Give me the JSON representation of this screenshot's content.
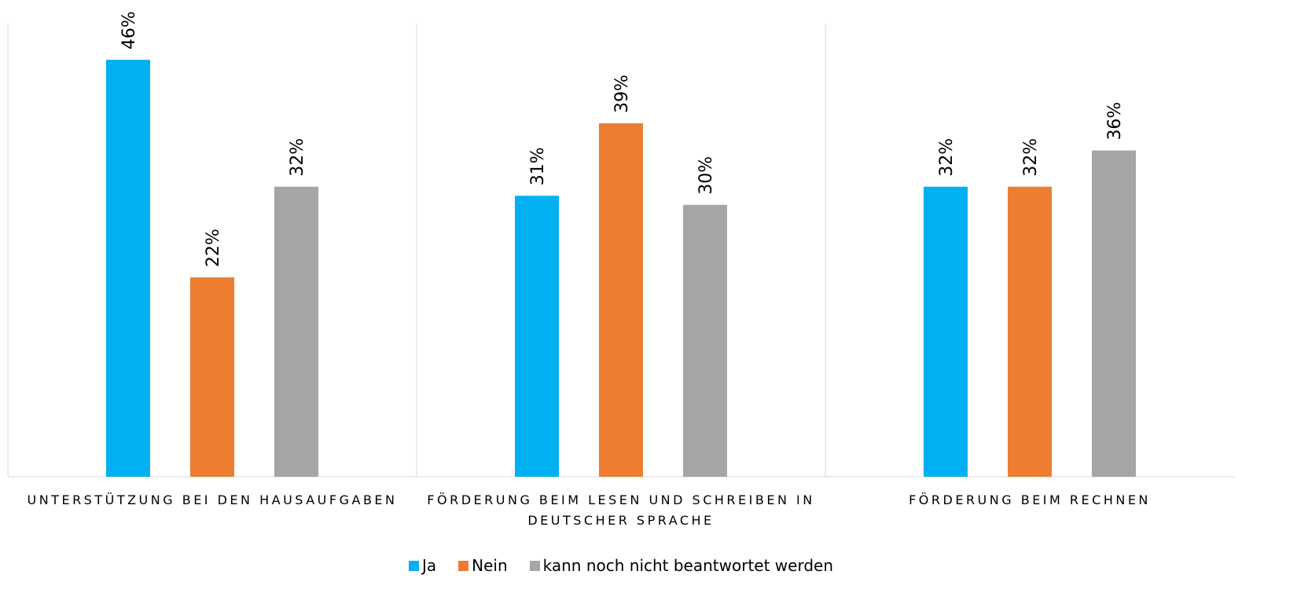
{
  "chart_data": {
    "type": "bar",
    "categories": [
      "UNTERSTÜTZUNG BEI DEN HAUSAUFGABEN",
      "FÖRDERUNG BEIM LESEN UND SCHREIBEN IN DEUTSCHER SPRACHE",
      "FÖRDERUNG BEIM RECHNEN"
    ],
    "series": [
      {
        "name": "Ja",
        "color": "#00b0f0",
        "values": [
          46,
          31,
          32
        ],
        "value_labels": [
          "46%",
          "31%",
          "32%"
        ]
      },
      {
        "name": "Nein",
        "color": "#ed7d31",
        "values": [
          22,
          39,
          32
        ],
        "value_labels": [
          "22%",
          "39%",
          "32%"
        ]
      },
      {
        "name": "kann noch nicht beantwortet werden",
        "color": "#a5a5a5",
        "values": [
          32,
          30,
          36
        ],
        "value_labels": [
          "32%",
          "30%",
          "36%"
        ]
      }
    ],
    "ylim": [
      0,
      50
    ],
    "legend": "bottom"
  }
}
